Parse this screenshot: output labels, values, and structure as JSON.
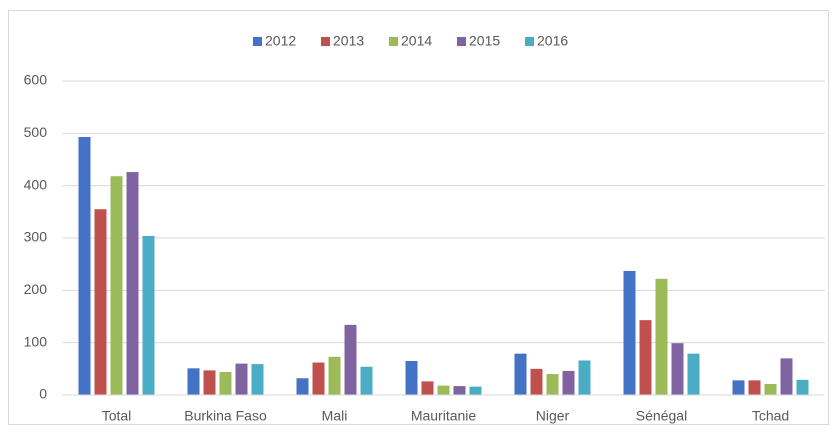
{
  "chart_data": {
    "type": "bar",
    "categories": [
      "Total",
      "Burkina Faso",
      "Mali",
      "Mauritanie",
      "Niger",
      "Sénégal",
      "Tchad"
    ],
    "series": [
      {
        "name": "2012",
        "color": "#4472c4",
        "values": [
          493,
          51,
          32,
          65,
          79,
          237,
          28
        ]
      },
      {
        "name": "2013",
        "color": "#c0504d",
        "values": [
          355,
          47,
          62,
          26,
          50,
          143,
          28
        ]
      },
      {
        "name": "2014",
        "color": "#9bbb59",
        "values": [
          418,
          44,
          73,
          18,
          40,
          222,
          21
        ]
      },
      {
        "name": "2015",
        "color": "#8064a2",
        "values": [
          426,
          60,
          134,
          17,
          46,
          99,
          70
        ]
      },
      {
        "name": "2016",
        "color": "#4bacc6",
        "values": [
          304,
          59,
          54,
          16,
          66,
          79,
          29
        ]
      }
    ],
    "ylim": [
      0,
      600
    ],
    "yticks": [
      0,
      100,
      200,
      300,
      400,
      500,
      600
    ],
    "grid": true,
    "legend": "top"
  }
}
